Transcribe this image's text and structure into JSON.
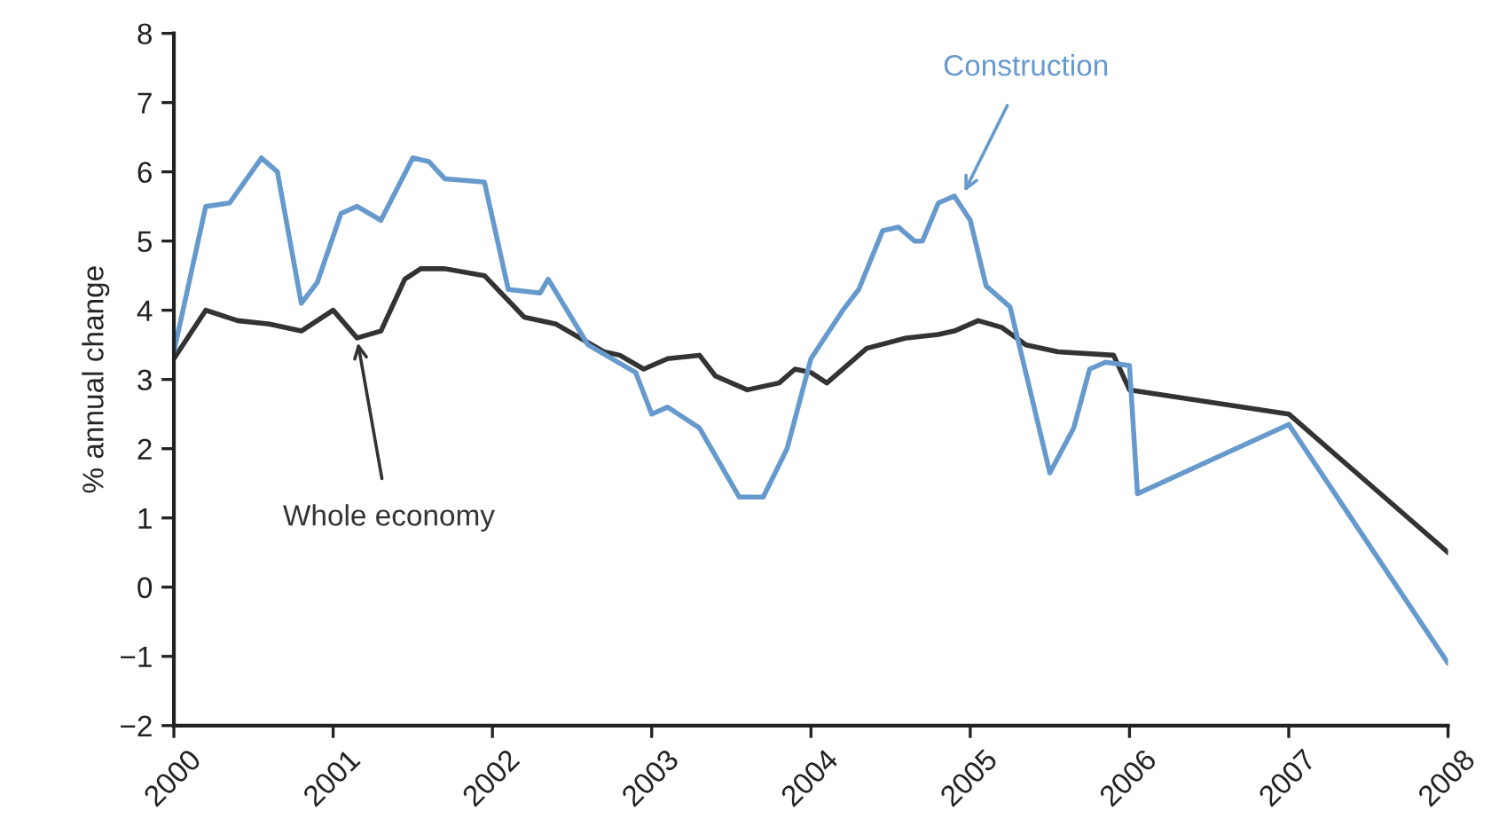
{
  "chart_data": {
    "type": "line",
    "ylabel": "% annual change",
    "series": [
      {
        "color": "#333333",
        "x": [
          2000.0,
          2000.2,
          2000.4,
          2000.6,
          2000.8,
          2001.0,
          2001.15,
          2001.3,
          2001.45,
          2001.55,
          2001.7,
          2001.95,
          2002.2,
          2002.4,
          2002.7,
          2002.8,
          2002.95,
          2003.1,
          2003.3,
          2003.4,
          2003.6,
          2003.8,
          2003.9,
          2004.0,
          2004.1,
          2004.35,
          2004.6,
          2004.8,
          2004.9,
          2005.05,
          2005.2,
          2005.35,
          2005.55,
          2005.9,
          2006.0,
          2007.0,
          2008.0
        ],
        "values": [
          3.3,
          4.0,
          3.85,
          3.8,
          3.7,
          4.0,
          3.6,
          3.7,
          4.45,
          4.6,
          4.6,
          4.5,
          3.9,
          3.8,
          3.4,
          3.35,
          3.15,
          3.3,
          3.35,
          3.05,
          2.85,
          2.95,
          3.15,
          3.1,
          2.95,
          3.45,
          3.6,
          3.65,
          3.7,
          3.85,
          3.75,
          3.5,
          3.4,
          3.35,
          2.85,
          2.5,
          0.5
        ]
      },
      {
        "color": "#6699cc",
        "x": [
          2000.0,
          2000.2,
          2000.35,
          2000.55,
          2000.65,
          2000.8,
          2000.9,
          2001.05,
          2001.15,
          2001.3,
          2001.5,
          2001.6,
          2001.7,
          2001.95,
          2002.1,
          2002.3,
          2002.35,
          2002.6,
          2002.9,
          2003.0,
          2003.1,
          2003.3,
          2003.55,
          2003.7,
          2003.85,
          2004.0,
          2004.2,
          2004.3,
          2004.45,
          2004.55,
          2004.65,
          2004.7,
          2004.8,
          2004.9,
          2005.0,
          2005.1,
          2005.25,
          2005.5,
          2005.65,
          2005.75,
          2005.85,
          2006.0,
          2006.05,
          2007.0,
          2008.0
        ],
        "values": [
          3.4,
          5.5,
          5.55,
          6.2,
          6.0,
          4.1,
          4.4,
          5.4,
          5.5,
          5.3,
          6.2,
          6.15,
          5.9,
          5.85,
          4.3,
          4.25,
          4.45,
          3.5,
          3.1,
          2.5,
          2.6,
          2.3,
          1.3,
          1.3,
          2.0,
          3.3,
          4.0,
          4.3,
          5.15,
          5.2,
          5.0,
          5.0,
          5.55,
          5.65,
          5.3,
          4.35,
          4.05,
          1.65,
          2.3,
          3.15,
          3.25,
          3.2,
          1.35,
          2.35,
          -1.1
        ]
      }
    ],
    "annotations": [
      {
        "text": "Whole economy",
        "x": 2001.15,
        "y": 3.6
      },
      {
        "text": "Construction",
        "x": 2004.95,
        "y": 5.65
      }
    ],
    "xlim": [
      2000,
      2008
    ],
    "xticks": [
      2000,
      2001,
      2002,
      2003,
      2004,
      2005,
      2006,
      2007,
      2008
    ],
    "ylim": [
      -2,
      8
    ],
    "yticks": [
      {
        "value": -2,
        "label": "−2"
      },
      {
        "value": -1,
        "label": "−1"
      },
      0,
      1,
      2,
      3,
      4,
      5,
      6,
      7,
      8
    ]
  }
}
